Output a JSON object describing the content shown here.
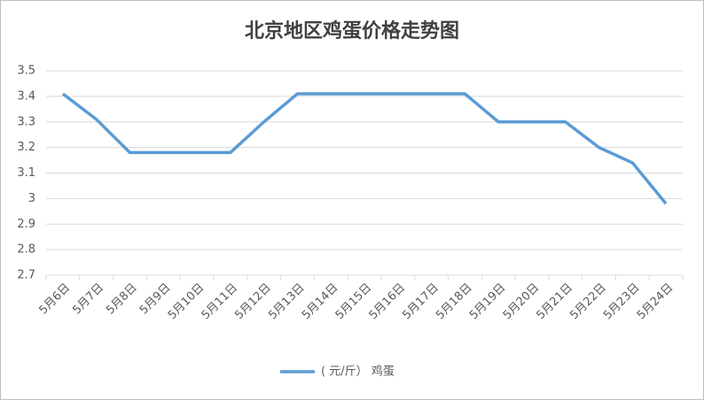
{
  "chart_data": {
    "type": "line",
    "title": "北京地区鸡蛋价格走势图",
    "categories": [
      "5月6日",
      "5月7日",
      "5月8日",
      "5月9日",
      "5月10日",
      "5月11日",
      "5月12日",
      "5月13日",
      "5月14日",
      "5月15日",
      "5月16日",
      "5月17日",
      "5月18日",
      "5月19日",
      "5月20日",
      "5月21日",
      "5月22日",
      "5月23日",
      "5月24日"
    ],
    "series": [
      {
        "name": "( 元/斤） 鸡蛋",
        "color": "#5b9bd5",
        "values": [
          3.41,
          3.31,
          3.18,
          3.18,
          3.18,
          3.18,
          3.3,
          3.41,
          3.41,
          3.41,
          3.41,
          3.41,
          3.41,
          3.3,
          3.3,
          3.3,
          3.2,
          3.14,
          2.98
        ]
      }
    ],
    "ylim": [
      2.7,
      3.5
    ],
    "yticks": [
      2.7,
      2.8,
      2.9,
      3,
      3.1,
      3.2,
      3.3,
      3.4,
      3.5
    ],
    "grid": true,
    "legend": "bottom"
  }
}
